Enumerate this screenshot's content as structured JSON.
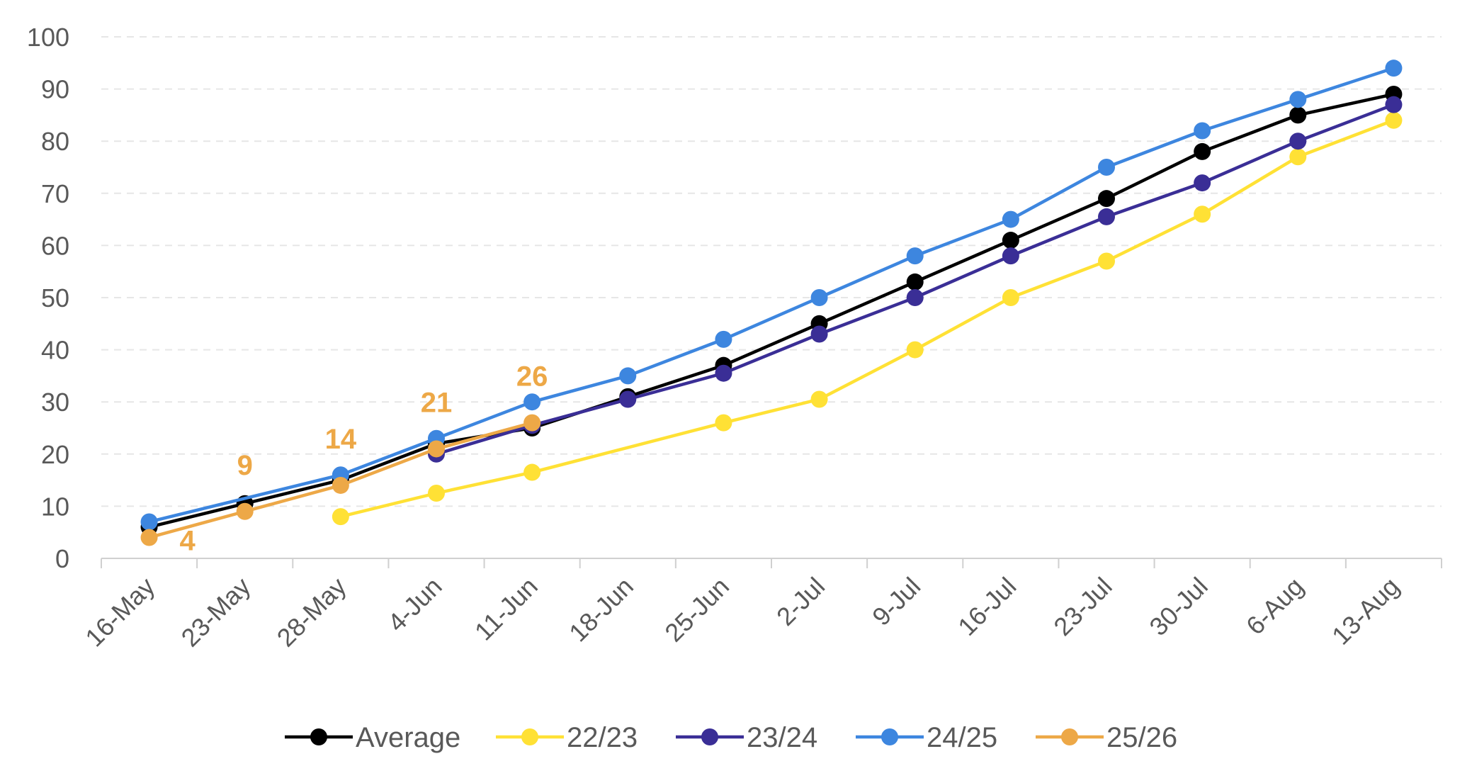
{
  "chart_data": {
    "type": "line",
    "title": "",
    "xlabel": "",
    "ylabel": "",
    "categories": [
      "16-May",
      "23-May",
      "28-May",
      "4-Jun",
      "11-Jun",
      "18-Jun",
      "25-Jun",
      "2-Jul",
      "9-Jul",
      "16-Jul",
      "23-Jul",
      "30-Jul",
      "6-Aug",
      "13-Aug"
    ],
    "ylim": [
      0,
      100
    ],
    "yticks": [
      0,
      10,
      20,
      30,
      40,
      50,
      60,
      70,
      80,
      90,
      100
    ],
    "grid": true,
    "legend_position": "bottom",
    "series": [
      {
        "name": "Average",
        "color": "#000000",
        "values": [
          6,
          10.5,
          15,
          22,
          25,
          31,
          37,
          45,
          53,
          61,
          69,
          78,
          85,
          89
        ]
      },
      {
        "name": "22/23",
        "color": "#FFE135",
        "values": [
          null,
          null,
          8,
          12.5,
          16.5,
          null,
          26,
          30.5,
          40,
          50,
          57,
          66,
          77,
          84
        ]
      },
      {
        "name": "23/24",
        "color": "#3A2E96",
        "values": [
          null,
          null,
          null,
          20,
          25.5,
          30.5,
          35.5,
          43,
          50,
          58,
          65.5,
          72,
          80,
          87
        ]
      },
      {
        "name": "24/25",
        "color": "#3D86DF",
        "values": [
          7,
          null,
          16,
          23,
          30,
          35,
          42,
          50,
          58,
          65,
          75,
          82,
          88,
          94
        ]
      },
      {
        "name": "25/26",
        "color": "#EDA847",
        "values": [
          4,
          9,
          14,
          21,
          26,
          null,
          null,
          null,
          null,
          null,
          null,
          null,
          null,
          null
        ],
        "data_labels": [
          "4",
          "9",
          "14",
          "21",
          "26"
        ]
      }
    ]
  }
}
